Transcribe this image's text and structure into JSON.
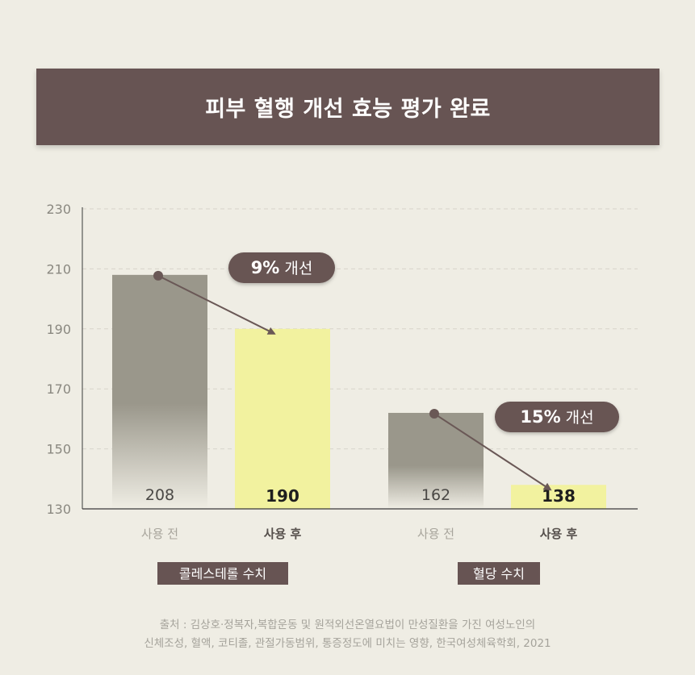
{
  "header": {
    "title": "피부 혈행 개선 효능 평가 완료"
  },
  "colors": {
    "banner": "#675453",
    "before_bar": "#9a978b",
    "after_bar": "#f2f29f",
    "arrow": "#6a5856",
    "badge": "#675453",
    "group_label_bg": "#675453",
    "axis_text": "#8a8880",
    "grid": "#d7d4ca"
  },
  "chart_data": {
    "type": "bar",
    "ylim": [
      130,
      230
    ],
    "yticks": [
      130,
      150,
      170,
      190,
      210,
      230
    ],
    "grid": true,
    "groups": [
      {
        "label": "콜레스테롤 수치",
        "bars": [
          {
            "category": "사용 전",
            "value": 208,
            "value_label": "208"
          },
          {
            "category": "사용 후",
            "value": 190,
            "value_label": "190"
          }
        ],
        "annotation": {
          "percent": "9%",
          "text": "개선"
        }
      },
      {
        "label": "혈당 수치",
        "bars": [
          {
            "category": "사용 전",
            "value": 162,
            "value_label": "162"
          },
          {
            "category": "사용 후",
            "value": 138,
            "value_label": "138"
          }
        ],
        "annotation": {
          "percent": "15%",
          "text": "개선"
        }
      }
    ]
  },
  "source": {
    "line1": "출처 : 김상호·정복자,복합운동 및 원적외선온열요법이 만성질환을 가진 여성노인의",
    "line2": "신체조성, 혈액, 코티졸, 관절가동범위, 통증정도에 미치는 영향, 한국여성체육학회, 2021"
  }
}
